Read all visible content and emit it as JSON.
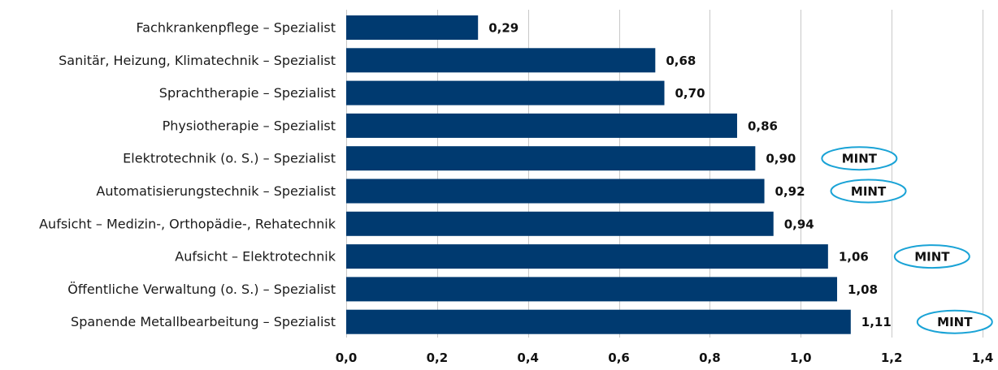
{
  "chart_data": {
    "type": "bar",
    "orientation": "horizontal",
    "categories": [
      "Fachkrankenpflege – Spezialist",
      "Sanitär, Heizung, Klimatechnik – Spezialist",
      "Sprachtherapie – Spezialist",
      "Physiotherapie – Spezialist",
      "Elektrotechnik (o. S.) – Spezialist",
      "Automatisierungstechnik – Spezialist",
      "Aufsicht – Medizin-, Orthopädie-, Rehatechnik",
      "Aufsicht – Elektrotechnik",
      "Öffentliche Verwaltung (o. S.) – Spezialist",
      "Spanende Metallbearbeitung – Spezialist"
    ],
    "values": [
      0.29,
      0.68,
      0.7,
      0.86,
      0.9,
      0.92,
      0.94,
      1.06,
      1.08,
      1.11
    ],
    "value_labels": [
      "0,29",
      "0,68",
      "0,70",
      "0,86",
      "0,90",
      "0,92",
      "0,94",
      "1,06",
      "1,08",
      "1,11"
    ],
    "badges": [
      "",
      "",
      "",
      "",
      "MINT",
      "MINT",
      "",
      "MINT",
      "",
      "MINT"
    ],
    "xlim": [
      0,
      1.4
    ],
    "xticks": [
      0,
      0.2,
      0.4,
      0.6,
      0.8,
      1.0,
      1.2,
      1.4
    ],
    "xtick_labels": [
      "0,0",
      "0,2",
      "0,4",
      "0,6",
      "0,8",
      "1,0",
      "1,2",
      "1,4"
    ],
    "title": "",
    "xlabel": "",
    "ylabel": "",
    "grid": "vertical",
    "colors": {
      "bar": "#003a70",
      "badge_outline": "#1aa3d6",
      "grid": "#c8c8c8"
    }
  }
}
